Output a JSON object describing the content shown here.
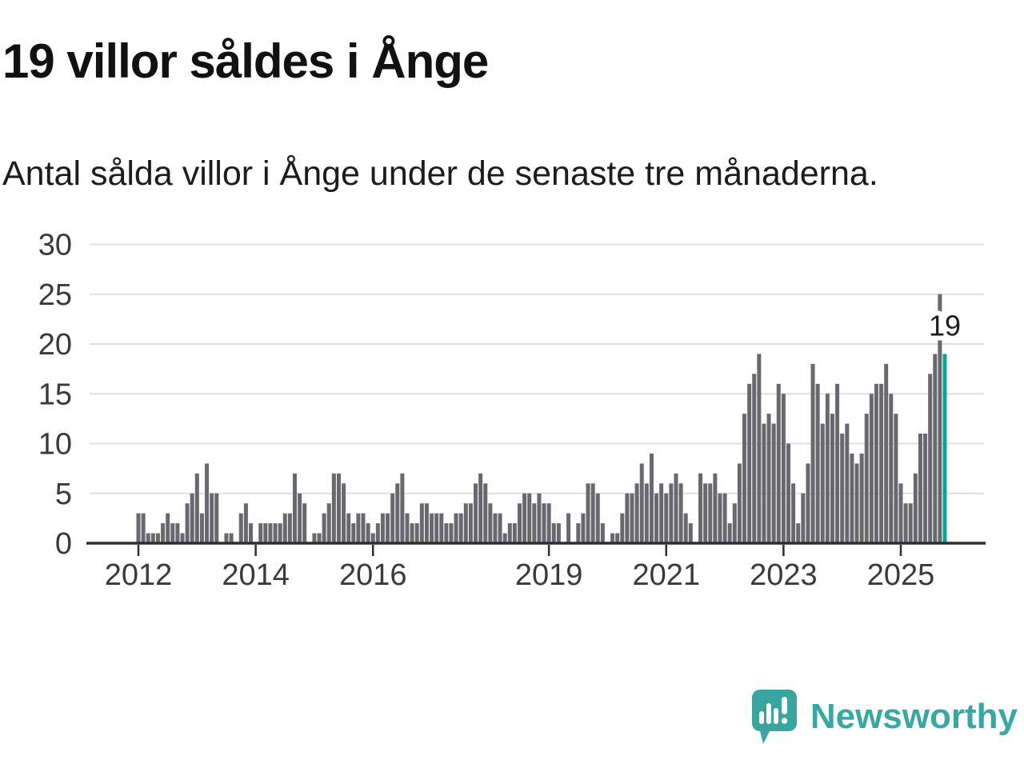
{
  "header": {
    "title": "19 villor såldes i Ånge",
    "subtitle": "Antal sålda villor i Ånge under de senaste tre månaderna."
  },
  "chart_data": {
    "type": "bar",
    "title": "19 villor såldes i Ånge",
    "subtitle": "Antal sålda villor i Ånge under de senaste tre månaderna.",
    "x_unit": "month",
    "start_year": 2012,
    "start_month": 1,
    "series": [
      {
        "year": 2012,
        "values": [
          3,
          3,
          1,
          1,
          1,
          2,
          3,
          2,
          2,
          1,
          4,
          5
        ]
      },
      {
        "year": 2013,
        "values": [
          7,
          3,
          8,
          5,
          5,
          0,
          1,
          1,
          0,
          3,
          4,
          2
        ]
      },
      {
        "year": 2014,
        "values": [
          0,
          2,
          2,
          2,
          2,
          2,
          3,
          3,
          7,
          5,
          4,
          0
        ]
      },
      {
        "year": 2015,
        "values": [
          1,
          1,
          3,
          4,
          7,
          7,
          6,
          3,
          2,
          3,
          3,
          2
        ]
      },
      {
        "year": 2016,
        "values": [
          1,
          2,
          3,
          3,
          5,
          6,
          7,
          3,
          2,
          2,
          4,
          4
        ]
      },
      {
        "year": 2017,
        "values": [
          3,
          3,
          3,
          2,
          2,
          3,
          3,
          4,
          4,
          6,
          7,
          6
        ]
      },
      {
        "year": 2018,
        "values": [
          4,
          3,
          3,
          1,
          2,
          2,
          4,
          5,
          5,
          4,
          5,
          4
        ]
      },
      {
        "year": 2019,
        "values": [
          4,
          2,
          2,
          0,
          3,
          0,
          2,
          3,
          6,
          6,
          5,
          2
        ]
      },
      {
        "year": 2020,
        "values": [
          0,
          1,
          1,
          3,
          5,
          5,
          6,
          8,
          6,
          9,
          5,
          6
        ]
      },
      {
        "year": 2021,
        "values": [
          5,
          6,
          7,
          6,
          3,
          2,
          0,
          7,
          6,
          6,
          7,
          5
        ]
      },
      {
        "year": 2022,
        "values": [
          5,
          2,
          4,
          8,
          13,
          16,
          17,
          19,
          12,
          13,
          12,
          16
        ]
      },
      {
        "year": 2023,
        "values": [
          15,
          10,
          6,
          2,
          5,
          8,
          18,
          16,
          12,
          15,
          13,
          16
        ]
      },
      {
        "year": 2024,
        "values": [
          11,
          12,
          9,
          8,
          9,
          13,
          15,
          16,
          16,
          18,
          15,
          13
        ]
      },
      {
        "year": 2025,
        "values": [
          6,
          4,
          4,
          7,
          11,
          11,
          17,
          19,
          25,
          19
        ]
      }
    ],
    "highlight": {
      "position": "last",
      "value": 19,
      "label": "19"
    },
    "y_ticks": [
      0,
      5,
      10,
      15,
      20,
      25,
      30
    ],
    "ylim": [
      0,
      30
    ],
    "x_tick_labels": [
      "2012",
      "2014",
      "2016",
      "2019",
      "2021",
      "2023",
      "2025"
    ],
    "grid": true,
    "legend": false,
    "xlabel": "",
    "ylabel": "",
    "colors": {
      "bar": "#68686e",
      "highlight": "#0aa39c",
      "gridline": "#e0e0e0",
      "axis": "#2e2e2e",
      "tick_label": "#3a3a3a",
      "annotation": "#1c1c1c"
    }
  },
  "branding": {
    "logo_text": "Newsworthy",
    "logo_icon": "bar-chart-speech-bubble-icon",
    "logo_color": "#3aa7a2",
    "logo_icon_color": "#38a5a0"
  }
}
